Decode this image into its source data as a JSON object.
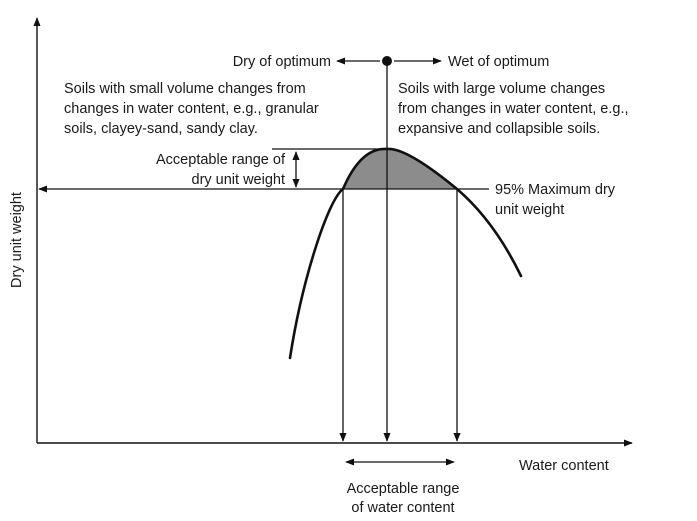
{
  "axes": {
    "x_label": "Water content",
    "y_label": "Dry unit weight"
  },
  "annotations": {
    "dry_of_optimum": "Dry of optimum",
    "wet_of_optimum": "Wet of optimum",
    "dry_side_lines": [
      "Soils with small volume changes from",
      "changes in water content, e.g., granular",
      "soils, clayey-sand, sandy clay."
    ],
    "wet_side_lines": [
      "Soils with large volume changes",
      "from changes in water content, e.g.,",
      "expansive and collapsible soils."
    ],
    "acceptable_dry_unit_weight_lines": [
      "Acceptable range of",
      "dry unit weight"
    ],
    "max_dry_unit_weight_lines": [
      "95% Maximum dry",
      "unit weight"
    ],
    "acceptable_water_content_lines": [
      "Acceptable range",
      "of water content"
    ]
  },
  "colors": {
    "line": "#111111",
    "fill": "#8c8c8c",
    "text": "#1a1a1a"
  }
}
